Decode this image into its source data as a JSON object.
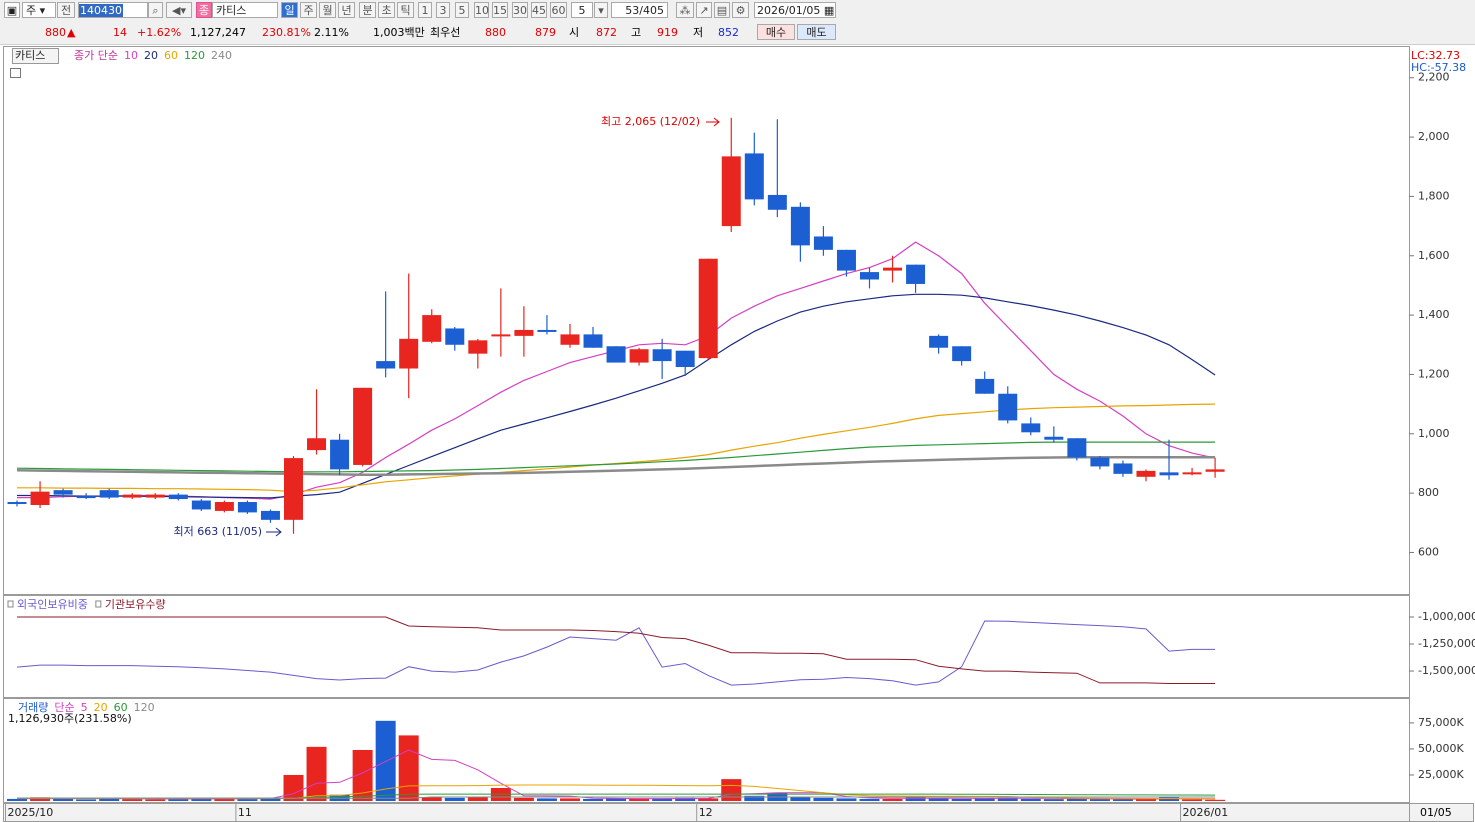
{
  "toolbar": {
    "market": "주",
    "prev": "전",
    "code": "140430",
    "kind": "종",
    "name": "카티스",
    "periods": [
      "일",
      "주",
      "월",
      "년",
      "분",
      "초",
      "틱"
    ],
    "intervals": [
      "1",
      "3",
      "5",
      "10",
      "15",
      "30",
      "45",
      "60"
    ],
    "count": "5",
    "range": "53/405",
    "date": "2026/01/05"
  },
  "quote": {
    "price": "880",
    "arrow": "▲",
    "change": "14",
    "rate": "+1.62%",
    "volume": "1,127,247",
    "volume_ratio": "230.81%",
    "turnover": "2.11%",
    "amount": "1,003백만",
    "best_label": "최우선",
    "ask": "880",
    "bid": "879",
    "open_label": "시",
    "open": "872",
    "high_label": "고",
    "high": "919",
    "low_label": "저",
    "low": "852",
    "buy": "매수",
    "sell": "매도"
  },
  "chart_data": [
    {
      "type": "candlestick",
      "title": "카티스",
      "legend_prefix": "종가 단순",
      "corner_labels": [
        "LC:32.73",
        "HC:-57.38"
      ],
      "annotations": [
        "최고 2,065 (12/02)",
        "최저 663 (11/05)"
      ],
      "categories": [
        "2025/10",
        null,
        null,
        null,
        null,
        null,
        null,
        null,
        null,
        null,
        "11",
        null,
        null,
        null,
        null,
        null,
        null,
        null,
        null,
        null,
        null,
        null,
        null,
        null,
        null,
        null,
        null,
        null,
        null,
        null,
        "12",
        null,
        null,
        null,
        null,
        null,
        null,
        null,
        null,
        null,
        null,
        null,
        null,
        null,
        null,
        null,
        null,
        null,
        null,
        null,
        null,
        "2026/01",
        null
      ],
      "x_end_label": "01/05",
      "open": [
        770,
        760,
        810,
        790,
        810,
        785,
        785,
        795,
        775,
        740,
        770,
        740,
        710,
        945,
        980,
        895,
        1245,
        1220,
        1310,
        1355,
        1270,
        1330,
        1330,
        1350,
        1300,
        1335,
        1295,
        1240,
        1285,
        1280,
        1255,
        1700,
        1945,
        1805,
        1765,
        1665,
        1620,
        1545,
        1550,
        1570,
        1330,
        1295,
        1185,
        1135,
        1035,
        990,
        985,
        920,
        900,
        855,
        870,
        865,
        872
      ],
      "high": [
        775,
        840,
        815,
        800,
        815,
        800,
        800,
        800,
        780,
        775,
        775,
        745,
        925,
        1150,
        1000,
        1155,
        1480,
        1540,
        1420,
        1360,
        1320,
        1490,
        1430,
        1400,
        1370,
        1360,
        1295,
        1290,
        1320,
        1280,
        1590,
        2065,
        2015,
        2060,
        1780,
        1700,
        1620,
        1560,
        1600,
        1570,
        1335,
        1295,
        1210,
        1160,
        1055,
        1025,
        985,
        925,
        910,
        880,
        980,
        885,
        919
      ],
      "low": [
        755,
        750,
        785,
        780,
        780,
        780,
        780,
        775,
        740,
        735,
        730,
        700,
        663,
        930,
        860,
        890,
        1190,
        1120,
        1305,
        1280,
        1220,
        1260,
        1260,
        1335,
        1290,
        1290,
        1240,
        1230,
        1185,
        1195,
        1250,
        1680,
        1770,
        1730,
        1580,
        1600,
        1530,
        1490,
        1510,
        1475,
        1270,
        1230,
        1135,
        1035,
        995,
        970,
        910,
        880,
        855,
        840,
        845,
        860,
        852
      ],
      "close": [
        765,
        805,
        795,
        785,
        785,
        795,
        795,
        780,
        745,
        770,
        735,
        710,
        918,
        985,
        880,
        1155,
        1220,
        1320,
        1400,
        1300,
        1315,
        1335,
        1350,
        1345,
        1335,
        1290,
        1240,
        1285,
        1245,
        1225,
        1590,
        1935,
        1790,
        1755,
        1635,
        1620,
        1550,
        1520,
        1560,
        1505,
        1290,
        1245,
        1135,
        1045,
        1005,
        980,
        920,
        890,
        865,
        875,
        860,
        870,
        880
      ],
      "up_color": "#e8251f",
      "down_color": "#1c5fd2",
      "ylim": [
        460,
        2307
      ],
      "yticks": [
        600,
        800,
        {
          "value": 1000,
          "label": "1,000"
        },
        {
          "value": 1200,
          "label": "1,200"
        },
        {
          "value": 1400,
          "label": "1,400"
        },
        {
          "value": 1600,
          "label": "1,600"
        },
        {
          "value": 1800,
          "label": "1,800"
        },
        {
          "value": 2000,
          "label": "2,000"
        },
        {
          "value": 2200,
          "label": "2,200"
        }
      ],
      "series": [
        {
          "name": "10",
          "color": "#d43fc4",
          "values": [
            785,
            785,
            788,
            790,
            790,
            792,
            792,
            790,
            788,
            785,
            783,
            780,
            795,
            820,
            835,
            870,
            920,
            965,
            1012,
            1050,
            1095,
            1140,
            1180,
            1210,
            1240,
            1260,
            1280,
            1300,
            1305,
            1300,
            1330,
            1390,
            1430,
            1465,
            1490,
            1515,
            1540,
            1560,
            1590,
            1646,
            1600,
            1540,
            1440,
            1360,
            1280,
            1200,
            1150,
            1110,
            1060,
            1000,
            960,
            935,
            918
          ]
        },
        {
          "name": "20",
          "color": "#1a2a80",
          "values": [
            792,
            792,
            791,
            790,
            790,
            790,
            789,
            788,
            787,
            786,
            785,
            784,
            790,
            795,
            803,
            833,
            863,
            893,
            923,
            953,
            983,
            1012,
            1033,
            1054,
            1075,
            1097,
            1120,
            1145,
            1170,
            1198,
            1250,
            1300,
            1345,
            1380,
            1410,
            1430,
            1445,
            1455,
            1465,
            1470,
            1470,
            1467,
            1458,
            1445,
            1432,
            1417,
            1400,
            1380,
            1358,
            1333,
            1300,
            1250,
            1198
          ]
        },
        {
          "name": "60",
          "color": "#e8a400",
          "values": [
            818,
            818,
            817,
            817,
            816,
            816,
            815,
            815,
            814,
            813,
            812,
            810,
            805,
            810,
            818,
            828,
            838,
            845,
            852,
            858,
            864,
            870,
            876,
            882,
            888,
            894,
            900,
            906,
            912,
            920,
            930,
            945,
            958,
            970,
            985,
            998,
            1010,
            1022,
            1035,
            1050,
            1062,
            1068,
            1074,
            1080,
            1085,
            1088,
            1090,
            1092,
            1094,
            1095,
            1097,
            1099,
            1100
          ]
        },
        {
          "name": "120",
          "color": "#2a9a3a",
          "values": [
            884,
            883,
            882,
            881,
            880,
            879,
            878,
            877,
            876,
            875,
            874,
            873,
            872,
            872,
            872,
            873,
            874,
            875,
            876,
            878,
            880,
            883,
            886,
            889,
            892,
            895,
            898,
            902,
            906,
            910,
            915,
            920,
            926,
            932,
            938,
            944,
            950,
            955,
            958,
            961,
            963,
            965,
            967,
            969,
            971,
            972,
            972,
            972,
            972,
            972,
            972,
            972,
            972
          ]
        },
        {
          "name": "240",
          "color": "#8a8a8a",
          "values": [
            877,
            876,
            875,
            874,
            873,
            872,
            871,
            870,
            869,
            868,
            867,
            866,
            865,
            864,
            863,
            862,
            862,
            863,
            864,
            865,
            866,
            867,
            868,
            870,
            872,
            874,
            876,
            878,
            880,
            882,
            885,
            888,
            891,
            894,
            897,
            900,
            903,
            906,
            908,
            910,
            912,
            914,
            916,
            918,
            919,
            920,
            921,
            921,
            921,
            921,
            921,
            921,
            921
          ]
        }
      ]
    },
    {
      "type": "line",
      "ylim": [
        -1740000,
        -815000
      ],
      "yticks": [
        {
          "value": -1000000,
          "label": "-1,000,000"
        },
        {
          "value": -1250000,
          "label": "-1,250,000"
        },
        {
          "value": -1500000,
          "label": "-1,500,000"
        }
      ],
      "series": [
        {
          "name": "외국인보유비중",
          "color": "#6a5acd",
          "values": [
            -1463000,
            -1445000,
            -1445000,
            -1450000,
            -1450000,
            -1450000,
            -1455000,
            -1460000,
            -1470000,
            -1480000,
            -1495000,
            -1510000,
            -1540000,
            -1570000,
            -1583000,
            -1570000,
            -1565000,
            -1460000,
            -1500000,
            -1510000,
            -1490000,
            -1417000,
            -1360000,
            -1278000,
            -1185000,
            -1200000,
            -1215000,
            -1100000,
            -1463000,
            -1430000,
            -1540000,
            -1630000,
            -1620000,
            -1600000,
            -1580000,
            -1575000,
            -1560000,
            -1570000,
            -1590000,
            -1630000,
            -1600000,
            -1460000,
            -1037000,
            -1040000,
            -1050000,
            -1060000,
            -1070000,
            -1080000,
            -1090000,
            -1110000,
            -1315000,
            -1300000,
            -1300000
          ]
        },
        {
          "name": "기관보유수량",
          "color": "#8b1a2a",
          "values": [
            -1000000,
            -1000000,
            -1000000,
            -1000000,
            -1000000,
            -1000000,
            -1000000,
            -1000000,
            -1000000,
            -1000000,
            -1000000,
            -1000000,
            -1000000,
            -1000000,
            -1000000,
            -1000000,
            -1000000,
            -1083000,
            -1090000,
            -1095000,
            -1100000,
            -1120000,
            -1120000,
            -1120000,
            -1120000,
            -1125000,
            -1135000,
            -1150000,
            -1190000,
            -1200000,
            -1260000,
            -1330000,
            -1330000,
            -1335000,
            -1335000,
            -1340000,
            -1390000,
            -1390000,
            -1390000,
            -1395000,
            -1455000,
            -1480000,
            -1500000,
            -1500000,
            -1510000,
            -1515000,
            -1520000,
            -1610000,
            -1610000,
            -1610000,
            -1615000,
            -1615000,
            -1615000
          ]
        }
      ]
    },
    {
      "type": "volume",
      "title": "거래량",
      "legend_prefix": "단순",
      "subtitle": "1,126,930주(231.58%)",
      "values": [
        2000,
        3500,
        2500,
        1500,
        2500,
        1800,
        1500,
        1700,
        2500,
        2200,
        1800,
        2800,
        25000,
        52000,
        6000,
        49000,
        77000,
        63000,
        3500,
        3000,
        3500,
        12500,
        3000,
        2500,
        2500,
        2000,
        2500,
        2000,
        2500,
        3000,
        2500,
        21000,
        5000,
        7700,
        3500,
        3000,
        2500,
        2000,
        2000,
        3500,
        2500,
        2000,
        2500,
        3000,
        2000,
        1800,
        2000,
        1800,
        1500,
        2000,
        3500,
        1500,
        1127
      ],
      "ylim": [
        0,
        97000
      ],
      "yticks": [
        {
          "value": 25000,
          "label": "25,000K"
        },
        {
          "value": 50000,
          "label": "50,000K"
        },
        {
          "value": 75000,
          "label": "75,000K"
        }
      ],
      "series": [
        {
          "name": "5",
          "color": "#d43fc4",
          "values": [
            2300,
            2300,
            2300,
            2300,
            2300,
            2300,
            2000,
            2000,
            2000,
            2000,
            2200,
            2300,
            7000,
            17000,
            18000,
            27000,
            38000,
            49000,
            40000,
            39000,
            30000,
            17000,
            5000,
            4900,
            4700,
            2800,
            2500,
            2300,
            2300,
            2400,
            2500,
            6500,
            7000,
            8000,
            8000,
            8000,
            4300,
            3000,
            2600,
            2700,
            2700,
            2600,
            2500,
            2600,
            2600,
            2500,
            2300,
            2200,
            1900,
            1800,
            2100,
            2100,
            1900
          ]
        },
        {
          "name": "20",
          "color": "#e8a400",
          "values": [
            2500,
            2500,
            2500,
            2500,
            2500,
            2500,
            2500,
            2500,
            2500,
            2500,
            2500,
            2500,
            2500,
            5000,
            5300,
            7700,
            11500,
            14500,
            14600,
            14700,
            14800,
            15300,
            15400,
            15400,
            15400,
            15300,
            15200,
            15100,
            15000,
            14800,
            14700,
            15000,
            14000,
            12000,
            10000,
            8000,
            6000,
            5000,
            4800,
            4700,
            4600,
            4500,
            4400,
            4300,
            3500,
            3000,
            2800,
            2600,
            2500,
            2400,
            2400,
            2300,
            2300
          ]
        },
        {
          "name": "60",
          "color": "#2a9a3a",
          "values": [
            2800,
            2800,
            2800,
            2800,
            2800,
            2800,
            2800,
            2800,
            2800,
            2800,
            2800,
            2800,
            2800,
            3500,
            3900,
            4500,
            5500,
            6500,
            6600,
            6600,
            6600,
            6600,
            6600,
            6600,
            6600,
            6600,
            6600,
            6600,
            6600,
            6600,
            6600,
            6600,
            6600,
            6600,
            6600,
            6600,
            6600,
            6600,
            6600,
            6600,
            6600,
            6500,
            6400,
            6300,
            6200,
            6100,
            6000,
            6000,
            5900,
            5900,
            5800,
            5800,
            5700
          ]
        },
        {
          "name": "120",
          "color": "#8a8a8a",
          "values": [
            2600,
            2600,
            2600,
            2600,
            2600,
            2600,
            2600,
            2600,
            2600,
            2600,
            2600,
            2600,
            2600,
            2600,
            2600,
            2600,
            2600,
            2600,
            3800,
            3800,
            3800,
            3800,
            3800,
            3800,
            3800,
            3800,
            3800,
            3800,
            3800,
            3800,
            3800,
            3800,
            3800,
            3800,
            3800,
            3800,
            3800,
            3800,
            3800,
            3800,
            3800,
            3800,
            3800,
            3800,
            3800,
            3800,
            3800,
            3800,
            3800,
            3800,
            3800,
            3800,
            3800
          ]
        }
      ]
    }
  ]
}
